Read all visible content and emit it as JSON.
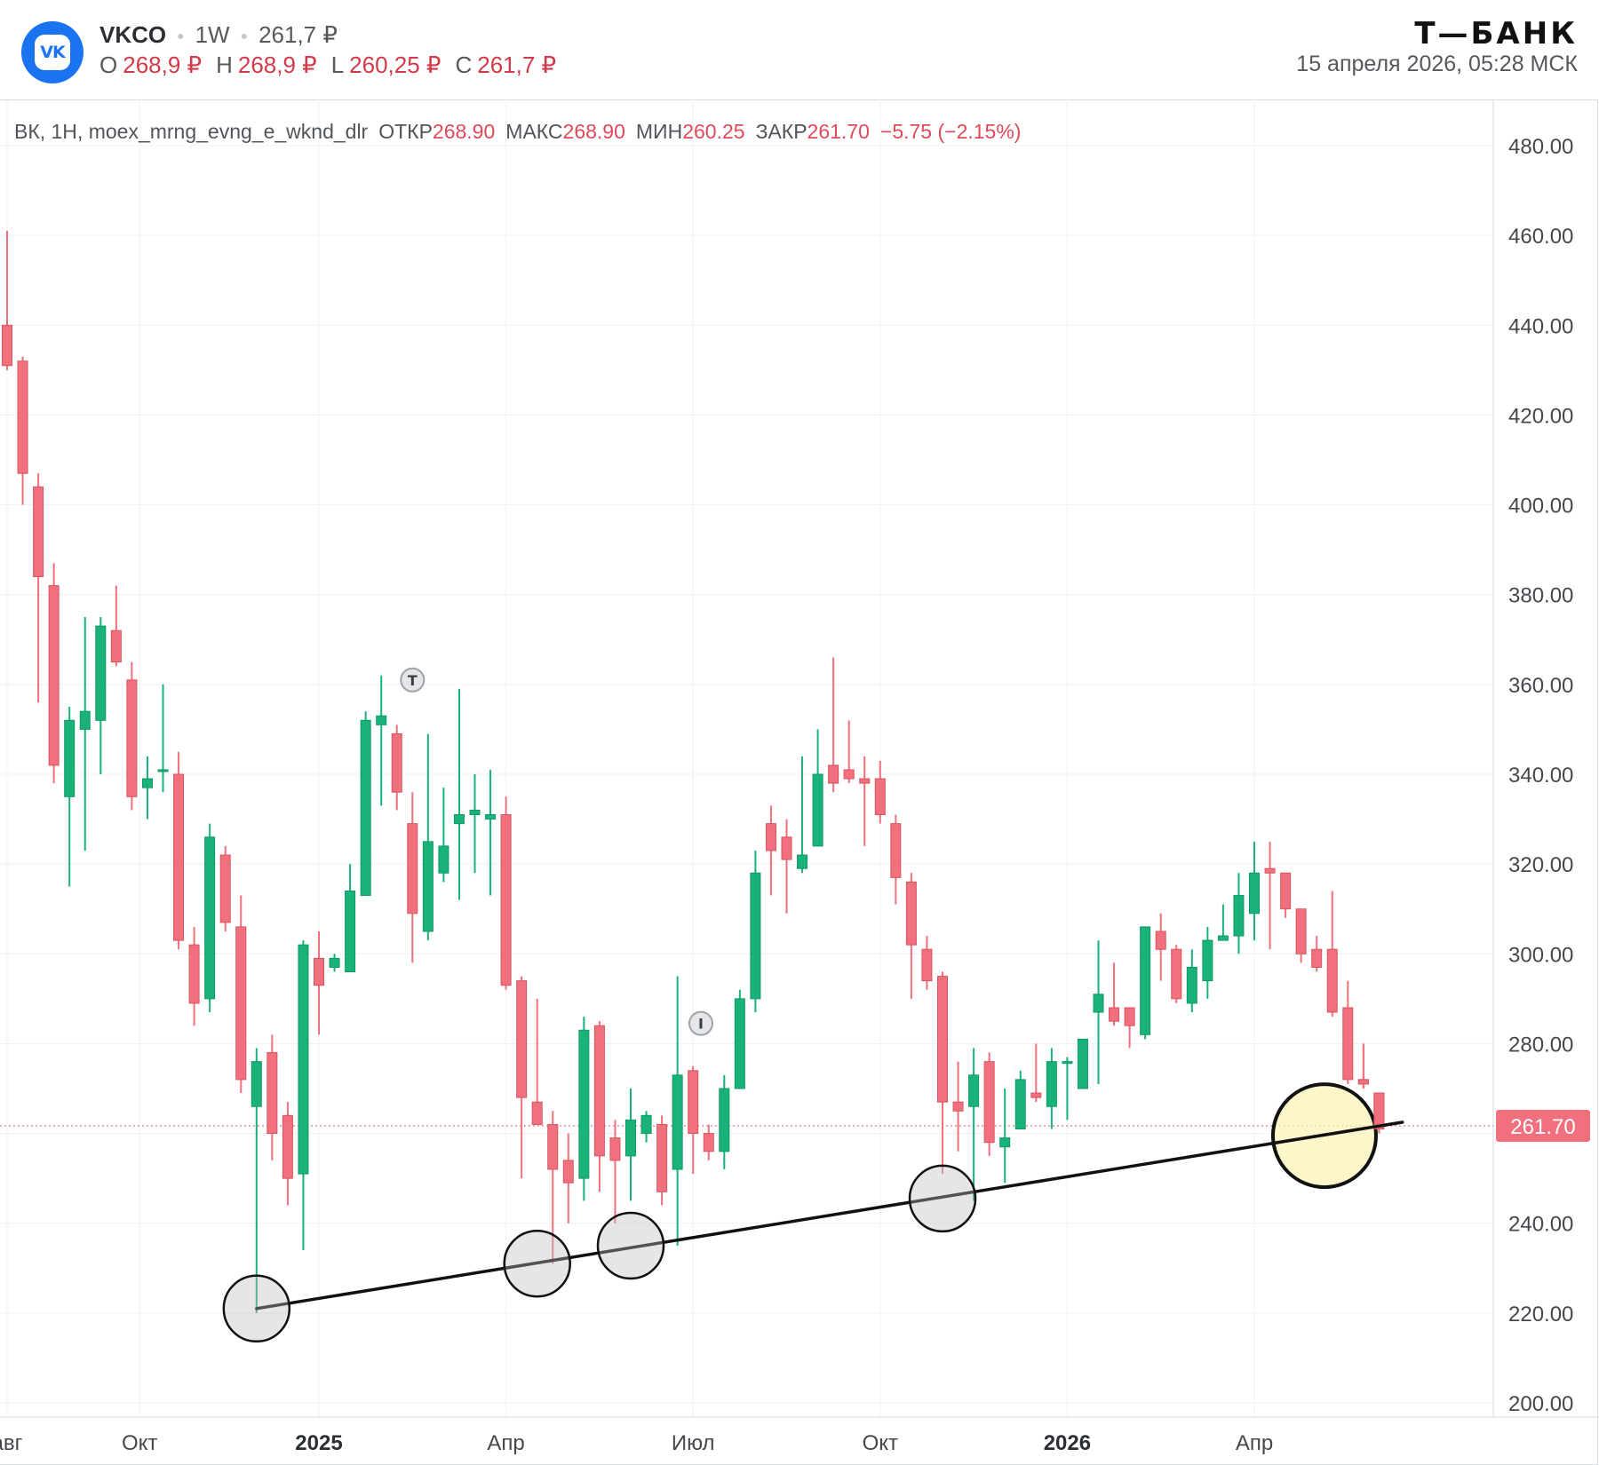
{
  "header": {
    "logo_text": "VK",
    "ticker": "VKCO",
    "interval": "1W",
    "price": "261,7 ₽",
    "ohlc": [
      {
        "label": "O",
        "value": "268,9 ₽"
      },
      {
        "label": "H",
        "value": "268,9 ₽"
      },
      {
        "label": "L",
        "value": "260,25 ₽"
      },
      {
        "label": "C",
        "value": "261,7 ₽"
      }
    ],
    "brand": "Т—БАНК",
    "datetime": "15 апреля 2026, 05:28 МСК"
  },
  "legend": {
    "symbol": "ВК, 1Н, moex_mrng_evng_e_wknd_dlr",
    "open_label": "ОТКР",
    "open": "268.90",
    "high_label": "МАКС",
    "high": "268.90",
    "low_label": "МИН",
    "low": "260.25",
    "close_label": "ЗАКР",
    "close": "261.70",
    "change": "−5.75 (−2.15%)"
  },
  "colors": {
    "up": "#19b278",
    "down": "#f0707e",
    "trendline": "#111111",
    "highlight": "#fbf3b8",
    "price_label": "#f0707e"
  },
  "chart_data": {
    "type": "candlestick",
    "ylim": [
      200,
      480
    ],
    "y_ticks": [
      "480.00",
      "460.00",
      "440.00",
      "420.00",
      "400.00",
      "380.00",
      "360.00",
      "340.00",
      "320.00",
      "300.00",
      "280.00",
      "260.00",
      "240.00",
      "220.00",
      "200.00"
    ],
    "x_labels": [
      {
        "text": "авг",
        "week": 0
      },
      {
        "text": "Окт",
        "week": 8.5
      },
      {
        "text": "2025",
        "week": 20
      },
      {
        "text": "Апр",
        "week": 32
      },
      {
        "text": "Июл",
        "week": 44
      },
      {
        "text": "Окт",
        "week": 56
      },
      {
        "text": "2026",
        "week": 68
      },
      {
        "text": "Апр",
        "week": 80
      }
    ],
    "current_price": 261.7,
    "current_price_label": "261.70",
    "candles": [
      [
        440,
        431,
        461,
        430
      ],
      [
        432,
        407,
        433,
        400
      ],
      [
        404,
        384,
        407,
        356
      ],
      [
        382,
        342,
        387,
        338
      ],
      [
        335,
        352,
        355,
        315
      ],
      [
        350,
        354,
        375,
        323
      ],
      [
        352,
        373,
        375,
        340
      ],
      [
        372,
        365,
        382,
        364
      ],
      [
        361,
        335,
        365,
        332
      ],
      [
        337,
        339,
        344,
        330
      ],
      [
        341,
        341,
        360,
        336
      ],
      [
        340,
        303,
        345,
        301
      ],
      [
        302,
        289,
        306,
        284
      ],
      [
        290,
        326,
        329,
        287
      ],
      [
        322,
        307,
        324,
        305
      ],
      [
        306,
        272,
        313,
        269
      ],
      [
        266,
        276,
        279,
        220
      ],
      [
        278,
        260,
        282,
        254
      ],
      [
        264,
        250,
        267,
        244
      ],
      [
        251,
        302,
        303,
        234
      ],
      [
        299,
        293,
        305,
        282
      ],
      [
        297,
        299,
        300,
        296
      ],
      [
        296,
        314,
        320,
        297
      ],
      [
        313,
        352,
        354,
        315
      ],
      [
        351,
        353,
        362,
        333
      ],
      [
        349,
        336,
        351,
        332
      ],
      [
        329,
        309,
        336,
        298
      ],
      [
        305,
        325,
        349,
        303
      ],
      [
        318,
        324,
        337,
        316
      ],
      [
        329,
        331,
        359,
        312
      ],
      [
        331,
        332,
        340,
        318
      ],
      [
        330,
        331,
        341,
        313
      ],
      [
        331,
        293,
        335,
        292
      ],
      [
        294,
        268,
        295,
        250
      ],
      [
        267,
        262,
        290,
        262
      ],
      [
        262,
        252,
        265,
        231
      ],
      [
        254,
        249,
        260,
        240
      ],
      [
        250,
        283,
        286,
        245
      ],
      [
        284,
        255,
        285,
        247
      ],
      [
        259,
        254,
        263,
        240
      ],
      [
        255,
        263,
        270,
        245
      ],
      [
        260,
        264,
        265,
        258
      ],
      [
        262,
        247,
        264,
        244
      ],
      [
        252,
        273,
        295,
        235
      ],
      [
        274,
        260,
        275,
        251
      ],
      [
        260,
        256,
        262,
        254
      ],
      [
        256,
        270,
        273,
        252
      ],
      [
        270,
        290,
        292,
        271
      ],
      [
        290,
        318,
        323,
        287
      ],
      [
        329,
        323,
        333,
        313
      ],
      [
        326,
        321,
        330,
        309
      ],
      [
        319,
        322,
        344,
        318
      ],
      [
        324,
        340,
        350,
        325
      ],
      [
        342,
        338,
        366,
        336
      ],
      [
        341,
        339,
        352,
        338
      ],
      [
        339,
        338,
        344,
        324
      ],
      [
        339,
        331,
        343,
        329
      ],
      [
        329,
        317,
        331,
        311
      ],
      [
        316,
        302,
        318,
        290
      ],
      [
        301,
        294,
        304,
        292
      ],
      [
        295,
        267,
        296,
        251
      ],
      [
        267,
        265,
        276,
        256
      ],
      [
        266,
        273,
        279,
        245
      ],
      [
        276,
        258,
        278,
        255
      ],
      [
        257,
        259,
        270,
        249
      ],
      [
        261,
        272,
        274,
        262
      ],
      [
        269,
        268,
        280,
        267
      ],
      [
        266,
        276,
        279,
        261
      ],
      [
        276,
        276,
        277,
        263
      ],
      [
        270,
        281,
        281,
        272
      ],
      [
        287,
        291,
        303,
        271
      ],
      [
        288,
        285,
        298,
        284
      ],
      [
        288,
        284,
        288,
        279
      ],
      [
        282,
        306,
        306,
        281
      ],
      [
        305,
        301,
        309,
        294
      ],
      [
        301,
        290,
        302,
        289
      ],
      [
        289,
        297,
        301,
        287
      ],
      [
        294,
        303,
        306,
        290
      ],
      [
        303,
        304,
        311,
        303
      ],
      [
        304,
        313,
        318,
        300
      ],
      [
        309,
        318,
        325,
        303
      ],
      [
        319,
        318,
        325,
        301
      ],
      [
        318,
        310,
        318,
        308
      ],
      [
        310,
        300,
        310,
        298
      ],
      [
        301,
        297,
        304,
        296
      ],
      [
        301,
        287,
        314,
        286
      ],
      [
        288,
        272,
        294,
        271
      ],
      [
        272,
        271,
        280,
        270
      ],
      [
        269,
        261,
        269,
        260
      ]
    ],
    "trendline": [
      [
        16,
        221
      ],
      [
        89.5,
        262.5
      ]
    ],
    "circled_lows": [
      {
        "week": 16,
        "price": 221
      },
      {
        "week": 34,
        "price": 231
      },
      {
        "week": 40,
        "price": 235
      },
      {
        "week": 60,
        "price": 245.5
      }
    ],
    "highlight_point": {
      "week": 84.5,
      "price": 259.5
    },
    "markers": [
      {
        "text": "T",
        "week": 26,
        "price": 361
      },
      {
        "text": "I",
        "week": 44.5,
        "price": 284.5
      }
    ]
  }
}
